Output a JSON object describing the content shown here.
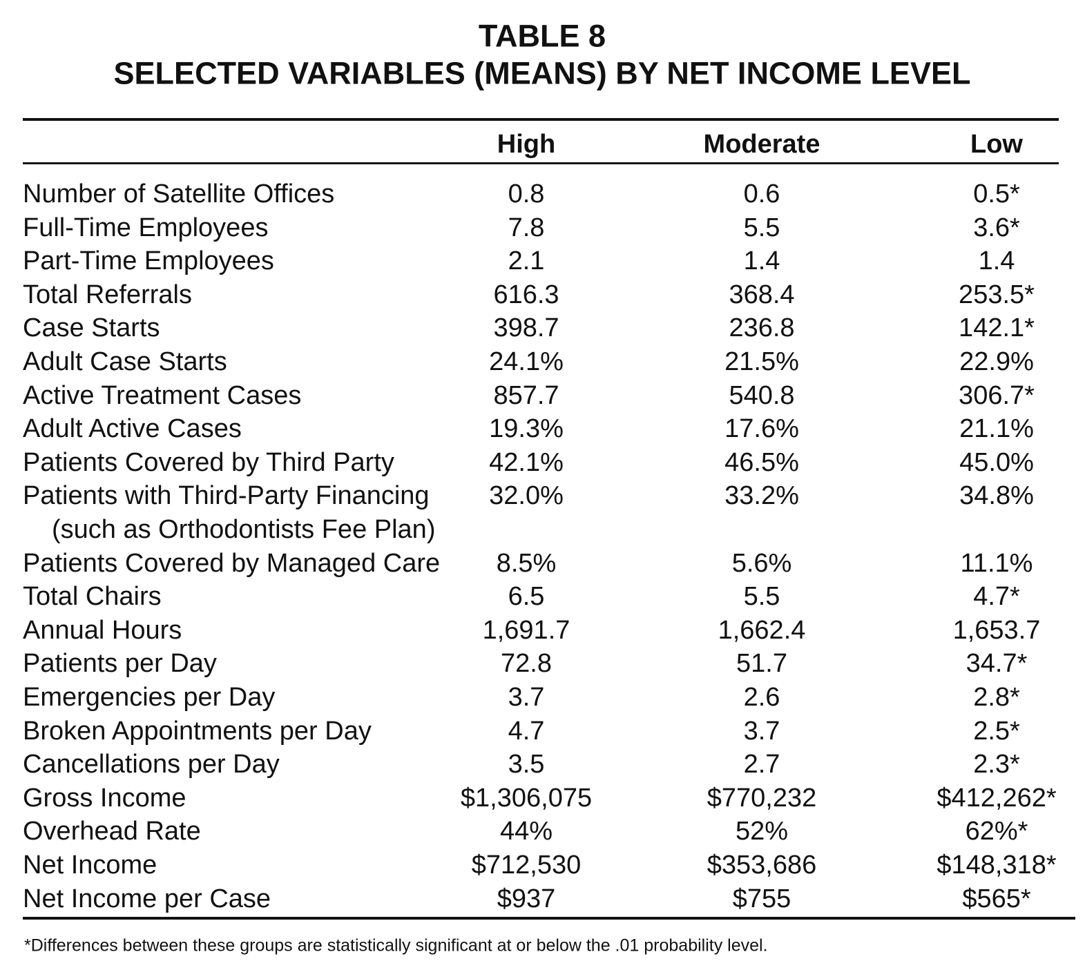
{
  "title": {
    "line1": "TABLE 8",
    "line2": "SELECTED VARIABLES (MEANS) BY NET INCOME LEVEL"
  },
  "table": {
    "columns": [
      "High",
      "Moderate",
      "Low"
    ],
    "rows": [
      {
        "label": "Number of Satellite Offices",
        "values": [
          "0.8",
          "0.6",
          "0.5*"
        ]
      },
      {
        "label": "Full-Time Employees",
        "values": [
          "7.8",
          "5.5",
          "3.6*"
        ]
      },
      {
        "label": "Part-Time Employees",
        "values": [
          "2.1",
          "1.4",
          "1.4"
        ]
      },
      {
        "label": "Total Referrals",
        "values": [
          "616.3",
          "368.4",
          "253.5*"
        ]
      },
      {
        "label": "Case Starts",
        "values": [
          "398.7",
          "236.8",
          "142.1*"
        ]
      },
      {
        "label": "Adult Case Starts",
        "values": [
          "24.1%",
          "21.5%",
          "22.9%"
        ]
      },
      {
        "label": "Active Treatment Cases",
        "values": [
          "857.7",
          "540.8",
          "306.7*"
        ]
      },
      {
        "label": "Adult Active Cases",
        "values": [
          "19.3%",
          "17.6%",
          "21.1%"
        ]
      },
      {
        "label": "Patients Covered by Third Party",
        "values": [
          "42.1%",
          "46.5%",
          "45.0%"
        ]
      },
      {
        "label": "Patients with Third-Party Financing",
        "sublabel": "(such as Orthodontists Fee Plan)",
        "values": [
          "32.0%",
          "33.2%",
          "34.8%"
        ]
      },
      {
        "label": "Patients Covered by Managed Care",
        "values": [
          "8.5%",
          "5.6%",
          "11.1%"
        ]
      },
      {
        "label": "Total Chairs",
        "values": [
          "6.5",
          "5.5",
          "4.7*"
        ]
      },
      {
        "label": "Annual Hours",
        "values": [
          "1,691.7",
          "1,662.4",
          "1,653.7"
        ]
      },
      {
        "label": "Patients per Day",
        "values": [
          "72.8",
          "51.7",
          "34.7*"
        ]
      },
      {
        "label": "Emergencies per Day",
        "values": [
          "3.7",
          "2.6",
          "2.8*"
        ]
      },
      {
        "label": "Broken Appointments per Day",
        "values": [
          "4.7",
          "3.7",
          "2.5*"
        ]
      },
      {
        "label": "Cancellations per Day",
        "values": [
          "3.5",
          "2.7",
          "2.3*"
        ]
      },
      {
        "label": "Gross Income",
        "values": [
          "$1,306,075",
          "$770,232",
          "$412,262*"
        ]
      },
      {
        "label": "Overhead Rate",
        "values": [
          "44%",
          "52%",
          "62%*"
        ]
      },
      {
        "label": "Net Income",
        "values": [
          "$712,530",
          "$353,686",
          "$148,318*"
        ]
      },
      {
        "label": "Net Income per Case",
        "values": [
          "$937",
          "$755",
          "$565*"
        ]
      }
    ]
  },
  "footnote": "*Differences between these groups are statistically significant at or below the .01 probability level."
}
